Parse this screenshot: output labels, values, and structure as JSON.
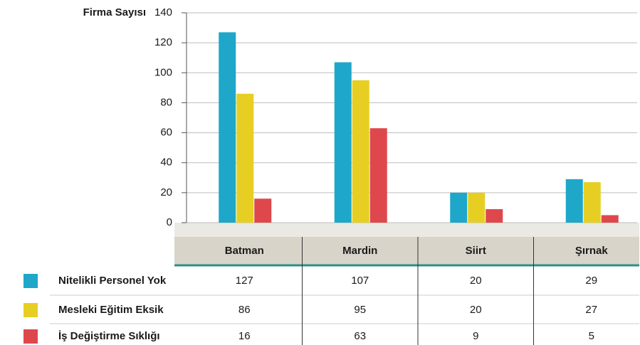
{
  "chart_data": {
    "type": "bar",
    "ylabel": "Firma Sayısı",
    "categories": [
      "Batman",
      "Mardin",
      "Siirt",
      "Şırnak"
    ],
    "series": [
      {
        "name": "Nitelikli Personel Yok",
        "color": "#1ea7c9",
        "values": [
          127,
          107,
          20,
          29
        ]
      },
      {
        "name": "Mesleki Eğitim Eksik",
        "color": "#e6cf22",
        "values": [
          86,
          95,
          20,
          27
        ]
      },
      {
        "name": "İş Değiştirme Sıklığı",
        "color": "#de484c",
        "values": [
          16,
          63,
          9,
          5
        ]
      }
    ],
    "ylim": [
      0,
      140
    ],
    "yticks": [
      0,
      20,
      40,
      60,
      80,
      100,
      120,
      140
    ],
    "grid": true
  }
}
